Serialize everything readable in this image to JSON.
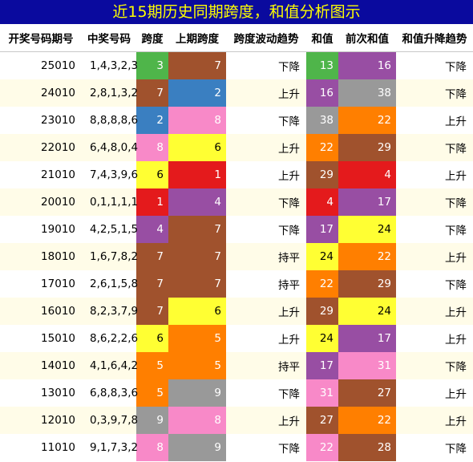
{
  "title": "近15期历史同期跨度，和值分析图示",
  "headers": [
    "开奖号码期号",
    "中奖号码",
    "跨度",
    "上期跨度",
    "跨度波动趋势",
    "和值",
    "前次和值",
    "和值升降趋势"
  ],
  "colors": {
    "green": "#4fb54a",
    "brown": "#a0522d",
    "blue": "#3a7fc1",
    "pink": "#f889c8",
    "yellow": "#ffff33",
    "red": "#e41a1c",
    "purple": "#984ea3",
    "orange": "#ff7f00",
    "gray": "#999999",
    "title_bg": "#0a0a9e",
    "title_fg": "#ffff00",
    "row_alt": "#fffce8"
  },
  "rows": [
    {
      "period": "25010",
      "nums": "1,4,3,2,3",
      "span": "3",
      "span_c": "green",
      "prev_span": "7",
      "prev_span_c": "brown",
      "span_trend": "下降",
      "sum": "13",
      "sum_c": "green",
      "prev_sum": "16",
      "prev_sum_c": "purple",
      "sum_trend": "下降"
    },
    {
      "period": "24010",
      "nums": "2,8,1,3,2",
      "span": "7",
      "span_c": "brown",
      "prev_span": "2",
      "prev_span_c": "blue",
      "span_trend": "上升",
      "sum": "16",
      "sum_c": "purple",
      "prev_sum": "38",
      "prev_sum_c": "gray",
      "sum_trend": "下降"
    },
    {
      "period": "23010",
      "nums": "8,8,8,8,6",
      "span": "2",
      "span_c": "blue",
      "prev_span": "8",
      "prev_span_c": "pink",
      "span_trend": "下降",
      "sum": "38",
      "sum_c": "gray",
      "prev_sum": "22",
      "prev_sum_c": "orange",
      "sum_trend": "上升"
    },
    {
      "period": "22010",
      "nums": "6,4,8,0,4",
      "span": "8",
      "span_c": "pink",
      "prev_span": "6",
      "prev_span_c": "yellow",
      "span_trend": "上升",
      "sum": "22",
      "sum_c": "orange",
      "prev_sum": "29",
      "prev_sum_c": "brown",
      "sum_trend": "下降"
    },
    {
      "period": "21010",
      "nums": "7,4,3,9,6",
      "span": "6",
      "span_c": "yellow",
      "prev_span": "1",
      "prev_span_c": "red",
      "span_trend": "上升",
      "sum": "29",
      "sum_c": "brown",
      "prev_sum": "4",
      "prev_sum_c": "red",
      "sum_trend": "上升"
    },
    {
      "period": "20010",
      "nums": "0,1,1,1,1",
      "span": "1",
      "span_c": "red",
      "prev_span": "4",
      "prev_span_c": "purple",
      "span_trend": "下降",
      "sum": "4",
      "sum_c": "red",
      "prev_sum": "17",
      "prev_sum_c": "purple",
      "sum_trend": "下降"
    },
    {
      "period": "19010",
      "nums": "4,2,5,1,5",
      "span": "4",
      "span_c": "purple",
      "prev_span": "7",
      "prev_span_c": "brown",
      "span_trend": "下降",
      "sum": "17",
      "sum_c": "purple",
      "prev_sum": "24",
      "prev_sum_c": "yellow",
      "sum_trend": "下降"
    },
    {
      "period": "18010",
      "nums": "1,6,7,8,2",
      "span": "7",
      "span_c": "brown",
      "prev_span": "7",
      "prev_span_c": "brown",
      "span_trend": "持平",
      "sum": "24",
      "sum_c": "yellow",
      "prev_sum": "22",
      "prev_sum_c": "orange",
      "sum_trend": "上升"
    },
    {
      "period": "17010",
      "nums": "2,6,1,5,8",
      "span": "7",
      "span_c": "brown",
      "prev_span": "7",
      "prev_span_c": "brown",
      "span_trend": "持平",
      "sum": "22",
      "sum_c": "orange",
      "prev_sum": "29",
      "prev_sum_c": "brown",
      "sum_trend": "下降"
    },
    {
      "period": "16010",
      "nums": "8,2,3,7,9",
      "span": "7",
      "span_c": "brown",
      "prev_span": "6",
      "prev_span_c": "yellow",
      "span_trend": "上升",
      "sum": "29",
      "sum_c": "brown",
      "prev_sum": "24",
      "prev_sum_c": "yellow",
      "sum_trend": "上升"
    },
    {
      "period": "15010",
      "nums": "8,6,2,2,6",
      "span": "6",
      "span_c": "yellow",
      "prev_span": "5",
      "prev_span_c": "orange",
      "span_trend": "上升",
      "sum": "24",
      "sum_c": "yellow",
      "prev_sum": "17",
      "prev_sum_c": "purple",
      "sum_trend": "上升"
    },
    {
      "period": "14010",
      "nums": "4,1,6,4,2",
      "span": "5",
      "span_c": "orange",
      "prev_span": "5",
      "prev_span_c": "orange",
      "span_trend": "持平",
      "sum": "17",
      "sum_c": "purple",
      "prev_sum": "31",
      "prev_sum_c": "pink",
      "sum_trend": "下降"
    },
    {
      "period": "13010",
      "nums": "6,8,8,3,6",
      "span": "5",
      "span_c": "orange",
      "prev_span": "9",
      "prev_span_c": "gray",
      "span_trend": "下降",
      "sum": "31",
      "sum_c": "pink",
      "prev_sum": "27",
      "prev_sum_c": "brown",
      "sum_trend": "上升"
    },
    {
      "period": "12010",
      "nums": "0,3,9,7,8",
      "span": "9",
      "span_c": "gray",
      "prev_span": "8",
      "prev_span_c": "pink",
      "span_trend": "上升",
      "sum": "27",
      "sum_c": "brown",
      "prev_sum": "22",
      "prev_sum_c": "orange",
      "sum_trend": "上升"
    },
    {
      "period": "11010",
      "nums": "9,1,7,3,2",
      "span": "8",
      "span_c": "pink",
      "prev_span": "9",
      "prev_span_c": "gray",
      "span_trend": "下降",
      "sum": "22",
      "sum_c": "pink",
      "prev_sum": "28",
      "prev_sum_c": "brown",
      "sum_trend": "下降"
    }
  ]
}
